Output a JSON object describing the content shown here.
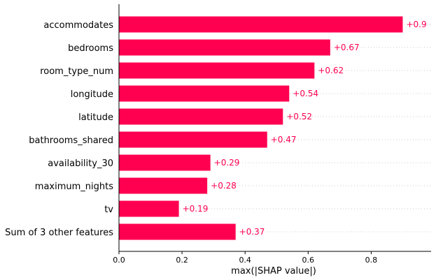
{
  "chart_data": {
    "type": "bar",
    "orientation": "horizontal",
    "categories": [
      "accommodates",
      "bedrooms",
      "room_type_num",
      "longitude",
      "latitude",
      "bathrooms_shared",
      "availability_30",
      "maximum_nights",
      "tv",
      "Sum of 3 other features"
    ],
    "values": [
      0.9,
      0.67,
      0.62,
      0.54,
      0.52,
      0.47,
      0.29,
      0.28,
      0.19,
      0.37
    ],
    "value_labels": [
      "+0.9",
      "+0.67",
      "+0.62",
      "+0.54",
      "+0.52",
      "+0.47",
      "+0.29",
      "+0.28",
      "+0.19",
      "+0.37"
    ],
    "xlabel": "max(|SHAP value|)",
    "ylabel": "",
    "title": "",
    "xlim": [
      0,
      0.99
    ],
    "xticks": [
      0.0,
      0.2,
      0.4,
      0.6,
      0.8
    ],
    "xtick_labels": [
      "0.0",
      "0.2",
      "0.4",
      "0.6",
      "0.8"
    ],
    "grid": "dotted horizontal guide lines per category",
    "colors": {
      "bar": "#ff0051",
      "value_label": "#ff0051",
      "axis": "#000000",
      "grid": "#cccccc"
    }
  }
}
